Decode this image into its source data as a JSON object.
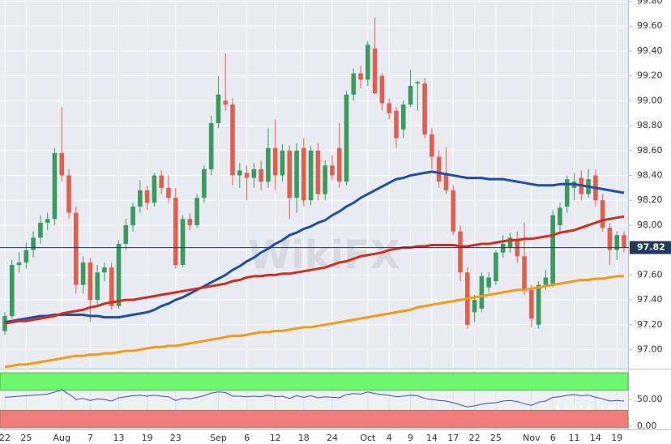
{
  "chart_data": [
    {
      "type": "candlestick",
      "categories": [
        "22",
        null,
        null,
        "25",
        null,
        null,
        null,
        null,
        "Aug",
        null,
        null,
        null,
        "7",
        null,
        null,
        null,
        "13",
        null,
        null,
        null,
        "19",
        null,
        null,
        null,
        "23",
        null,
        null,
        null,
        null,
        null,
        "Sep",
        null,
        null,
        null,
        "6",
        null,
        null,
        null,
        "12",
        null,
        null,
        null,
        "18",
        null,
        null,
        null,
        "24",
        null,
        null,
        null,
        null,
        "Oct",
        null,
        null,
        "4",
        null,
        null,
        "9",
        null,
        null,
        "14",
        null,
        null,
        "17",
        null,
        null,
        "22",
        null,
        null,
        "25",
        null,
        null,
        null,
        null,
        "Nov",
        null,
        null,
        "6",
        null,
        null,
        "11",
        null,
        null,
        "14",
        null,
        null,
        "19",
        null
      ],
      "open": [
        97.15,
        97.27,
        97.68,
        97.7,
        97.8,
        97.9,
        98.02,
        98.05,
        98.58,
        98.4,
        98.1,
        97.52,
        97.7,
        97.4,
        97.62,
        97.66,
        97.35,
        97.85,
        98.0,
        98.15,
        98.28,
        98.18,
        98.4,
        98.3,
        98.22,
        97.68,
        98.05,
        98.0,
        98.22,
        98.45,
        98.82,
        99.0,
        98.97,
        98.4,
        98.42,
        98.38,
        98.45,
        98.35,
        98.62,
        98.4,
        98.6,
        98.22,
        98.62,
        98.2,
        98.6,
        98.25,
        98.48,
        98.62,
        98.35,
        99.05,
        99.22,
        99.17,
        99.42,
        99.2,
        98.98,
        98.92,
        98.77,
        98.97,
        99.14,
        99.14,
        98.73,
        98.55,
        98.42,
        98.28,
        97.95,
        97.62,
        97.3,
        97.33,
        97.5,
        97.55,
        97.78,
        97.82,
        97.88,
        97.75,
        97.48,
        97.2,
        97.52,
        97.53,
        98.0,
        98.15,
        98.3,
        98.38,
        98.25,
        98.4,
        98.2,
        97.98,
        97.8,
        97.92
      ],
      "high": [
        97.3,
        97.72,
        97.78,
        97.86,
        97.95,
        98.08,
        98.1,
        98.62,
        98.95,
        98.45,
        98.15,
        97.75,
        97.74,
        97.68,
        97.7,
        97.7,
        97.88,
        98.05,
        98.18,
        98.36,
        98.32,
        98.42,
        98.44,
        98.4,
        98.3,
        98.08,
        98.1,
        98.25,
        98.48,
        98.88,
        99.2,
        99.38,
        99.02,
        98.5,
        98.48,
        98.5,
        98.52,
        98.78,
        98.85,
        98.65,
        98.64,
        98.66,
        98.7,
        98.64,
        98.66,
        98.52,
        98.56,
        98.82,
        99.08,
        99.26,
        99.28,
        99.48,
        99.67,
        99.22,
        99.02,
        98.95,
        99.0,
        99.25,
        99.16,
        99.18,
        98.78,
        98.6,
        98.63,
        98.32,
        98.0,
        97.66,
        97.44,
        97.62,
        97.62,
        97.8,
        97.92,
        97.94,
        97.95,
        98.02,
        97.52,
        97.55,
        97.64,
        98.12,
        98.18,
        98.4,
        98.42,
        98.44,
        98.45,
        98.45,
        98.25,
        98.02,
        97.95,
        97.95
      ],
      "low": [
        97.12,
        97.25,
        97.62,
        97.65,
        97.74,
        97.85,
        97.96,
        98.0,
        98.35,
        98.05,
        97.45,
        97.45,
        97.22,
        97.36,
        97.55,
        97.32,
        97.33,
        97.8,
        97.95,
        98.1,
        98.12,
        98.15,
        98.25,
        98.18,
        97.65,
        97.66,
        97.96,
        97.98,
        98.18,
        98.4,
        98.78,
        98.92,
        98.32,
        98.3,
        98.2,
        98.3,
        98.28,
        98.3,
        98.28,
        98.35,
        98.05,
        98.1,
        98.15,
        98.16,
        98.2,
        98.2,
        98.36,
        98.3,
        98.32,
        99.0,
        99.1,
        99.12,
        99.05,
        98.92,
        98.85,
        98.62,
        98.7,
        98.95,
        98.92,
        98.7,
        98.45,
        98.3,
        98.25,
        97.92,
        97.55,
        97.17,
        97.22,
        97.3,
        97.46,
        97.52,
        97.74,
        97.78,
        97.7,
        97.44,
        97.18,
        97.17,
        97.48,
        97.5,
        97.95,
        98.1,
        98.2,
        98.2,
        98.22,
        98.15,
        97.95,
        97.68,
        97.72,
        97.78
      ],
      "close": [
        97.27,
        97.68,
        97.7,
        97.8,
        97.9,
        98.02,
        98.05,
        98.58,
        98.4,
        98.1,
        97.52,
        97.7,
        97.4,
        97.62,
        97.66,
        97.35,
        97.85,
        98.0,
        98.15,
        98.28,
        98.18,
        98.4,
        98.3,
        98.22,
        97.68,
        98.05,
        98.0,
        98.22,
        98.45,
        98.82,
        99.05,
        98.97,
        98.4,
        98.44,
        98.38,
        98.45,
        98.35,
        98.62,
        98.4,
        98.6,
        98.22,
        98.6,
        98.2,
        98.6,
        98.25,
        98.48,
        98.4,
        98.35,
        99.05,
        99.22,
        99.17,
        99.45,
        99.06,
        98.98,
        98.9,
        98.7,
        98.97,
        99.12,
        99.15,
        98.73,
        98.55,
        98.35,
        98.28,
        97.95,
        97.62,
        97.2,
        97.4,
        97.59,
        97.58,
        97.78,
        97.85,
        97.9,
        97.75,
        97.48,
        97.25,
        97.52,
        97.58,
        98.08,
        98.14,
        98.37,
        98.35,
        98.25,
        98.37,
        98.2,
        97.98,
        97.8,
        97.92,
        97.82
      ],
      "up_color": "#3b9a5e",
      "down_color": "#e0604f",
      "series": [
        {
          "color": "#1f4fa8",
          "values": [
            97.22,
            97.23,
            97.24,
            97.25,
            97.26,
            97.27,
            97.27,
            97.28,
            97.28,
            97.28,
            97.28,
            97.28,
            97.27,
            97.27,
            97.26,
            97.26,
            97.26,
            97.27,
            97.28,
            97.29,
            97.3,
            97.32,
            97.35,
            97.37,
            97.4,
            97.42,
            97.45,
            97.48,
            97.51,
            97.54,
            97.57,
            97.6,
            97.64,
            97.67,
            97.71,
            97.74,
            97.78,
            97.81,
            97.85,
            97.88,
            97.92,
            97.94,
            97.97,
            97.99,
            98.02,
            98.04,
            98.08,
            98.11,
            98.15,
            98.18,
            98.22,
            98.25,
            98.28,
            98.31,
            98.34,
            98.37,
            98.38,
            98.4,
            98.41,
            98.42,
            98.43,
            98.42,
            98.41,
            98.4,
            98.39,
            98.38,
            98.38,
            98.38,
            98.37,
            98.37,
            98.37,
            98.36,
            98.35,
            98.34,
            98.33,
            98.32,
            98.32,
            98.32,
            98.33,
            98.33,
            98.33,
            98.32,
            98.31,
            98.3,
            98.29,
            98.28,
            98.27,
            98.26
          ]
        },
        {
          "color": "#d42d1e",
          "values": [
            97.21,
            97.22,
            97.23,
            97.23,
            97.24,
            97.25,
            97.26,
            97.27,
            97.29,
            97.3,
            97.31,
            97.32,
            97.34,
            97.35,
            97.37,
            97.38,
            97.39,
            97.4,
            97.4,
            97.41,
            97.42,
            97.43,
            97.44,
            97.45,
            97.46,
            97.47,
            97.48,
            97.49,
            97.5,
            97.51,
            97.52,
            97.53,
            97.55,
            97.56,
            97.58,
            97.59,
            97.59,
            97.6,
            97.6,
            97.61,
            97.61,
            97.62,
            97.63,
            97.64,
            97.65,
            97.66,
            97.68,
            97.7,
            97.71,
            97.73,
            97.75,
            97.76,
            97.77,
            97.78,
            97.8,
            97.81,
            97.82,
            97.82,
            97.83,
            97.83,
            97.84,
            97.84,
            97.84,
            97.84,
            97.83,
            97.83,
            97.84,
            97.85,
            97.85,
            97.86,
            97.87,
            97.88,
            97.88,
            97.89,
            97.89,
            97.9,
            97.91,
            97.92,
            97.94,
            97.95,
            97.96,
            97.98,
            98.0,
            98.02,
            98.04,
            98.05,
            98.06,
            98.07
          ]
        },
        {
          "color": "#f39c12",
          "values": [
            96.86,
            96.87,
            96.88,
            96.88,
            96.89,
            96.9,
            96.91,
            96.92,
            96.93,
            96.94,
            96.95,
            96.95,
            96.96,
            96.96,
            96.97,
            96.97,
            96.98,
            96.99,
            96.99,
            97.0,
            97.01,
            97.02,
            97.02,
            97.03,
            97.03,
            97.04,
            97.05,
            97.06,
            97.07,
            97.08,
            97.09,
            97.1,
            97.11,
            97.11,
            97.12,
            97.13,
            97.14,
            97.14,
            97.15,
            97.15,
            97.16,
            97.17,
            97.18,
            97.18,
            97.19,
            97.2,
            97.21,
            97.22,
            97.23,
            97.24,
            97.25,
            97.26,
            97.27,
            97.28,
            97.29,
            97.3,
            97.31,
            97.32,
            97.34,
            97.35,
            97.36,
            97.37,
            97.38,
            97.39,
            97.4,
            97.41,
            97.42,
            97.43,
            97.44,
            97.45,
            97.46,
            97.47,
            97.48,
            97.48,
            97.49,
            97.5,
            97.51,
            97.52,
            97.53,
            97.54,
            97.55,
            97.56,
            97.56,
            97.57,
            97.57,
            97.58,
            97.59,
            97.59
          ]
        }
      ],
      "price_line": {
        "value": 97.82,
        "label": "97.82"
      },
      "ylim": [
        96.86,
        99.81
      ],
      "yticks": [
        {
          "value": 97,
          "label": "97.00"
        },
        {
          "value": 97.2,
          "label": "97.20"
        },
        {
          "value": 97.4,
          "label": "97.40"
        },
        {
          "value": 97.6,
          "label": "97.60"
        },
        {
          "value": 97.8,
          "label": "97.80"
        },
        {
          "value": 98,
          "label": "98.00"
        },
        {
          "value": 98.2,
          "label": "98.20"
        },
        {
          "value": 98.4,
          "label": "98.40"
        },
        {
          "value": 98.6,
          "label": "98.60"
        },
        {
          "value": 98.8,
          "label": "98.80"
        },
        {
          "value": 99,
          "label": "99.00"
        },
        {
          "value": 99.2,
          "label": "99.20"
        },
        {
          "value": 99.4,
          "label": "99.40"
        },
        {
          "value": 99.6,
          "label": "99.60"
        },
        {
          "value": 99.8,
          "label": "99.80"
        }
      ],
      "grid": true,
      "watermark": "WikiFX"
    },
    {
      "type": "line",
      "color": "#2f4fd6",
      "values": [
        54,
        55,
        56,
        57,
        58,
        59,
        60,
        64,
        68,
        60,
        50,
        52,
        48,
        51,
        50,
        47,
        53,
        55,
        57,
        58,
        56,
        58,
        56,
        55,
        48,
        52,
        51,
        54,
        57,
        62,
        64,
        63,
        56,
        56,
        55,
        56,
        55,
        58,
        55,
        56,
        52,
        57,
        54,
        57,
        53,
        55,
        54,
        53,
        59,
        61,
        60,
        64,
        61,
        59,
        58,
        55,
        56,
        58,
        57,
        52,
        50,
        48,
        47,
        44,
        40,
        36,
        38,
        41,
        43,
        44,
        47,
        48,
        46,
        42,
        39,
        45,
        47,
        54,
        55,
        58,
        59,
        57,
        58,
        54,
        51,
        47,
        48,
        47
      ],
      "zones": [
        {
          "from": 70,
          "to": 100,
          "color": "#6df56d"
        },
        {
          "from": 0,
          "to": 30,
          "color": "#f07c7c"
        }
      ],
      "ylim": [
        0,
        100
      ],
      "yticks": [
        {
          "value": 0,
          "label": "0.00"
        },
        {
          "value": 50,
          "label": "50.00"
        }
      ]
    }
  ]
}
